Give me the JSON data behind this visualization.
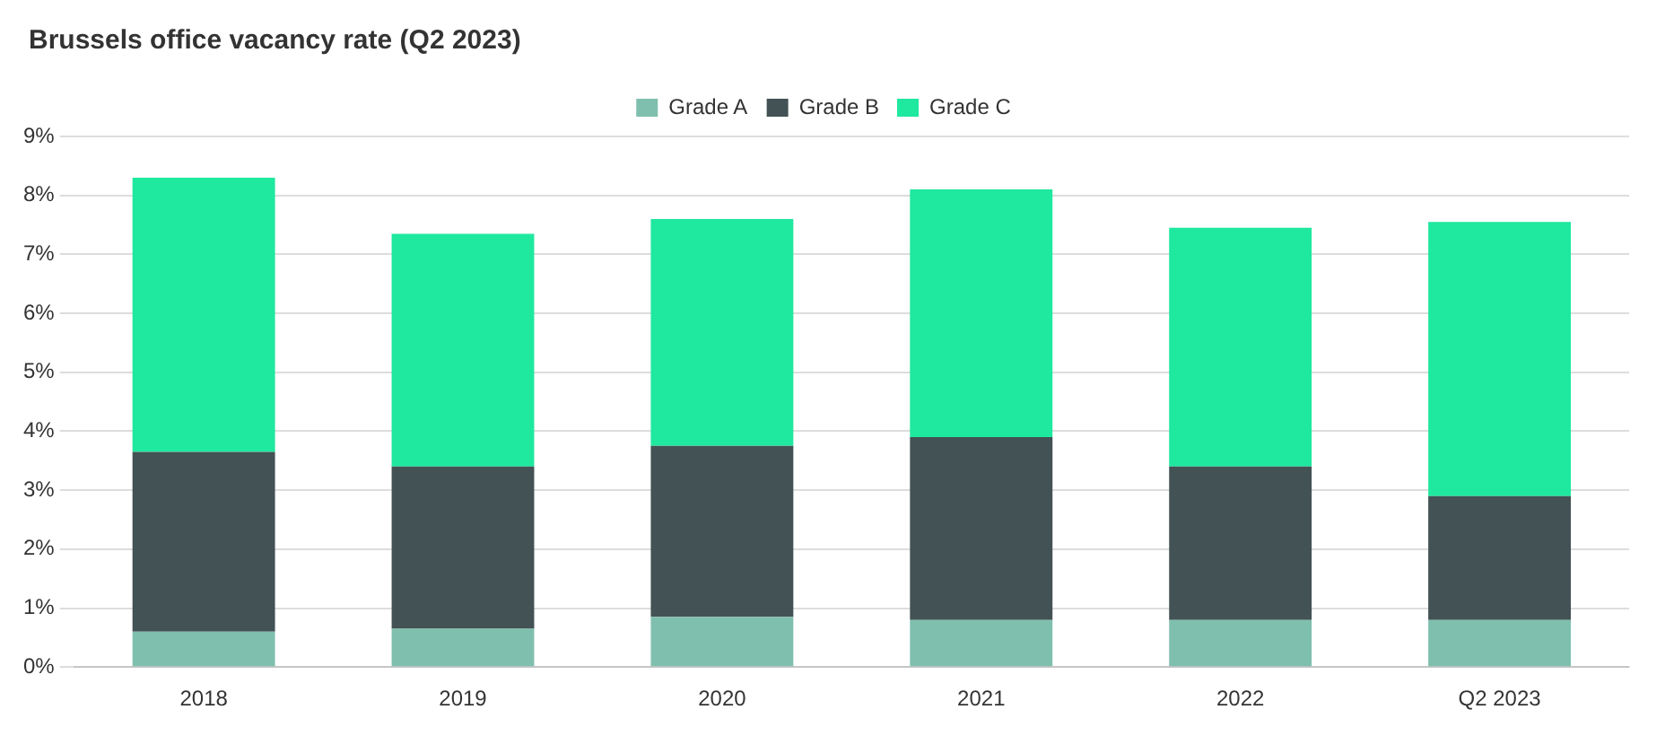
{
  "chart_data": {
    "type": "bar",
    "title": "Brussels office vacancy rate (Q2 2023)",
    "stacked": true,
    "categories": [
      "2018",
      "2019",
      "2020",
      "2021",
      "2022",
      "Q2 2023"
    ],
    "series": [
      {
        "name": "Grade A",
        "color": "#7fbfae",
        "values": [
          0.6,
          0.65,
          0.85,
          0.8,
          0.8,
          0.8
        ]
      },
      {
        "name": "Grade B",
        "color": "#435254",
        "values": [
          3.05,
          2.75,
          2.9,
          3.1,
          2.6,
          2.1
        ]
      },
      {
        "name": "Grade C",
        "color": "#1fe89f",
        "values": [
          4.65,
          3.95,
          3.85,
          4.2,
          4.05,
          4.65
        ]
      }
    ],
    "ylim": [
      0,
      9
    ],
    "yticks": [
      {
        "value": 0,
        "label": "0%"
      },
      {
        "value": 1,
        "label": "1%"
      },
      {
        "value": 2,
        "label": "2%"
      },
      {
        "value": 3,
        "label": "3%"
      },
      {
        "value": 4,
        "label": "4%"
      },
      {
        "value": 5,
        "label": "5%"
      },
      {
        "value": 6,
        "label": "6%"
      },
      {
        "value": 7,
        "label": "7%"
      },
      {
        "value": 8,
        "label": "8%"
      },
      {
        "value": 9,
        "label": "9%"
      }
    ],
    "grid": "y",
    "legend": "top"
  }
}
